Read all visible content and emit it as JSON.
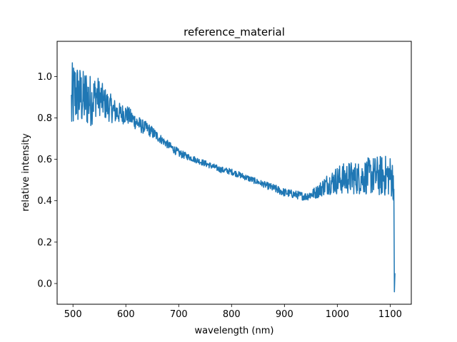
{
  "chart_data": {
    "type": "line",
    "title": "reference_material",
    "xlabel": "wavelength (nm)",
    "ylabel": "relative intensity",
    "xlim": [
      470,
      1140
    ],
    "ylim": [
      -0.1,
      1.17
    ],
    "xticks": [
      500,
      600,
      700,
      800,
      900,
      1000,
      1100
    ],
    "yticks": [
      0.0,
      0.2,
      0.4,
      0.6,
      0.8,
      1.0
    ],
    "ytick_labels": [
      "0.0",
      "0.2",
      "0.4",
      "0.6",
      "0.8",
      "1.0"
    ],
    "grid": false,
    "series": [
      {
        "color": "#1f77b4",
        "x": [
          497,
          500,
          505,
          510,
          515,
          520,
          525,
          530,
          535,
          540,
          545,
          550,
          560,
          570,
          580,
          590,
          600,
          610,
          620,
          630,
          640,
          650,
          660,
          670,
          680,
          690,
          700,
          720,
          740,
          760,
          780,
          800,
          820,
          840,
          860,
          880,
          900,
          920,
          940,
          950,
          960,
          970,
          980,
          990,
          1000,
          1020,
          1040,
          1060,
          1080,
          1100,
          1106,
          1107,
          1108,
          1109
        ],
        "y": [
          0.85,
          0.9,
          0.92,
          0.91,
          0.9,
          0.89,
          0.9,
          0.89,
          0.88,
          0.9,
          0.91,
          0.9,
          0.87,
          0.85,
          0.83,
          0.82,
          0.82,
          0.8,
          0.78,
          0.76,
          0.75,
          0.73,
          0.71,
          0.69,
          0.67,
          0.65,
          0.63,
          0.61,
          0.59,
          0.57,
          0.55,
          0.54,
          0.52,
          0.5,
          0.48,
          0.46,
          0.44,
          0.43,
          0.42,
          0.43,
          0.44,
          0.46,
          0.48,
          0.49,
          0.5,
          0.51,
          0.51,
          0.52,
          0.52,
          0.52,
          0.5,
          0.45,
          -0.04,
          0.05
        ],
        "noise": [
          0.2,
          0.18,
          0.17,
          0.15,
          0.15,
          0.14,
          0.15,
          0.14,
          0.12,
          0.11,
          0.1,
          0.09,
          0.08,
          0.07,
          0.06,
          0.05,
          0.05,
          0.04,
          0.04,
          0.035,
          0.03,
          0.03,
          0.025,
          0.02,
          0.02,
          0.02,
          0.02,
          0.015,
          0.015,
          0.015,
          0.015,
          0.015,
          0.015,
          0.015,
          0.015,
          0.02,
          0.02,
          0.02,
          0.02,
          0.025,
          0.03,
          0.04,
          0.05,
          0.06,
          0.07,
          0.08,
          0.08,
          0.09,
          0.1,
          0.1,
          0.1,
          0.05,
          0,
          0
        ]
      }
    ]
  }
}
